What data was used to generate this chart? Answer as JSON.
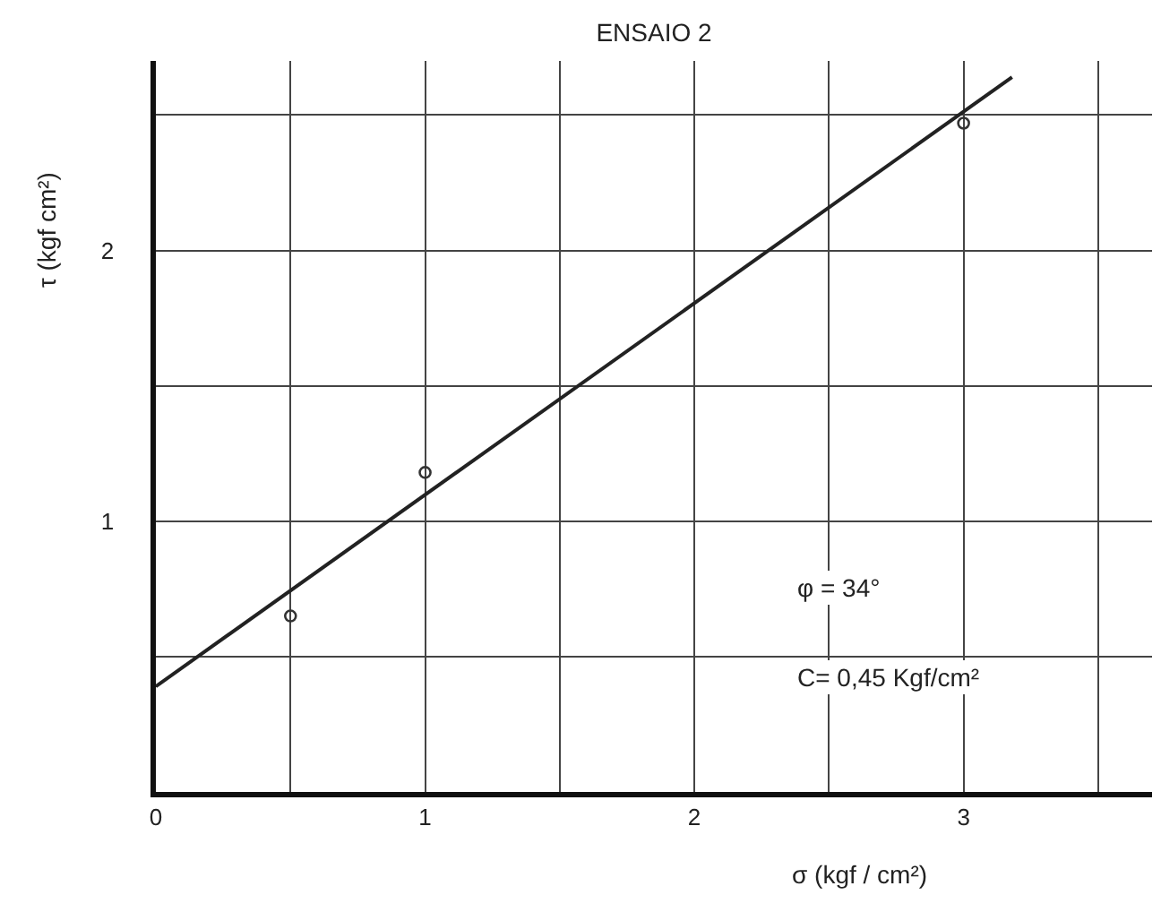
{
  "chart_data": {
    "type": "scatter",
    "title": "ENSAIO 2",
    "xlabel": "σ (kgf / cm²)",
    "ylabel": "τ (kgf cm²)",
    "x": [
      0.5,
      1,
      3
    ],
    "series": [
      {
        "values": [
          0.65,
          1.18,
          2.47
        ],
        "color": "#333333"
      },
      {
        "type": "line",
        "x": [
          0,
          3.18
        ],
        "values": [
          0.39,
          2.64
        ],
        "color": "#222222",
        "marker": "none",
        "line_style": "solid"
      }
    ],
    "xlim": [
      0,
      3.7
    ],
    "ylim": [
      0,
      2.7
    ],
    "xticks": [
      0,
      {
        "value": 0.5,
        "label": null
      },
      1,
      {
        "value": 1.5,
        "label": null
      },
      2,
      {
        "value": 2.5,
        "label": null
      },
      3,
      {
        "value": 3.5,
        "label": null
      }
    ],
    "yticks": [
      {
        "value": 0.5,
        "label": null
      },
      1,
      {
        "value": 1.5,
        "label": null
      },
      2,
      {
        "value": 2.5,
        "label": null
      }
    ],
    "annotations": [
      "φ = 34°",
      "C= 0,45 Kgf/cm²"
    ],
    "grid": true,
    "marker": "circle"
  }
}
